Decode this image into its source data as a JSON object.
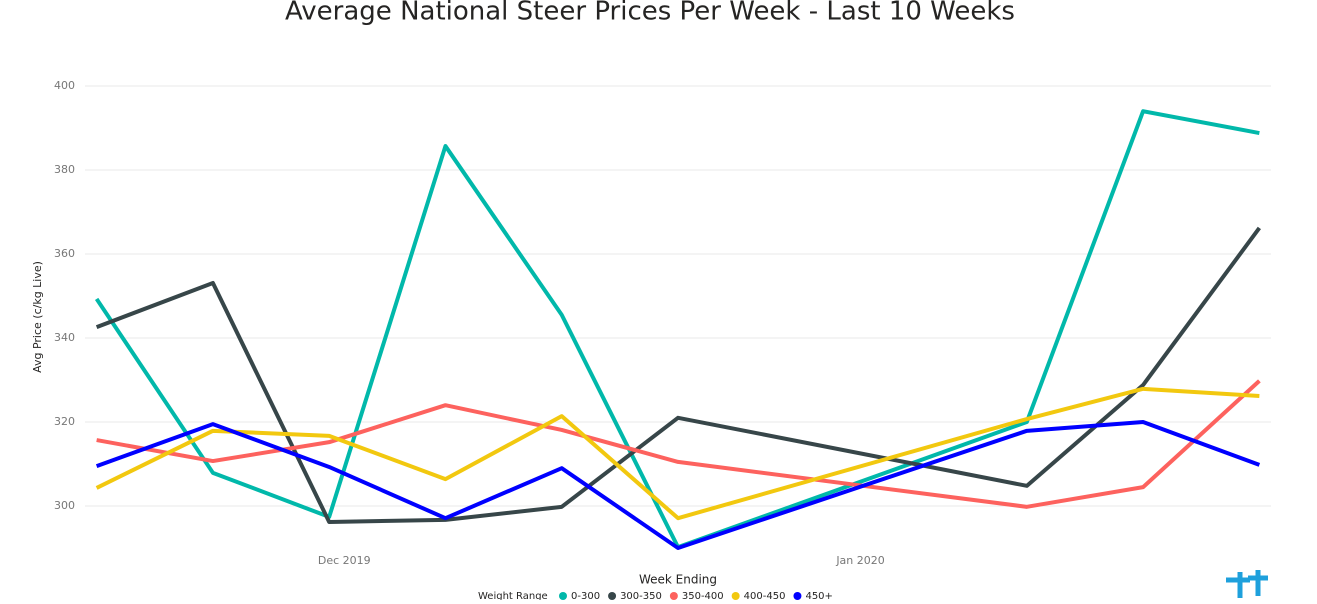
{
  "chart_data": {
    "type": "line",
    "title": "Average National Steer Prices Per Week - Last 10 Weeks",
    "x_label": "Week Ending",
    "y_label": "Avg Price (c/kg Live)",
    "legend_title": "Weight Range",
    "legend": "bottom",
    "grid": true,
    "x": [
      0,
      1,
      2,
      3,
      4,
      5,
      8,
      9,
      10
    ],
    "xlim": [
      -0.1,
      10.1
    ],
    "xticks": [
      {
        "value": 2.13,
        "label": "Dec 2019"
      },
      {
        "value": 6.57,
        "label": "Jan 2020"
      }
    ],
    "ylim": [
      290,
      400
    ],
    "yticks": [
      300,
      320,
      340,
      360,
      380,
      400
    ],
    "series": [
      {
        "name": "0-300",
        "color": "#01b8aa",
        "values": [
          349.3,
          307.9,
          297.4,
          385.7,
          345.5,
          290.2,
          320,
          394,
          388.8
        ]
      },
      {
        "name": "300-350",
        "color": "#374649",
        "values": [
          342.6,
          353.1,
          296.2,
          296.7,
          299.8,
          321,
          304.8,
          328.8,
          366.2
        ]
      },
      {
        "name": "350-400",
        "color": "#fd625e",
        "values": [
          315.7,
          310.7,
          315.2,
          324,
          318.1,
          310.5,
          299.8,
          304.5,
          329.8
        ]
      },
      {
        "name": "400-450",
        "color": "#f2c80f",
        "values": [
          304.3,
          317.9,
          316.7,
          306.4,
          321.4,
          297.1,
          320.7,
          327.9,
          326.2
        ]
      },
      {
        "name": "450+",
        "color": "#0000ff",
        "values": [
          309.5,
          319.5,
          309.3,
          297.1,
          309,
          290,
          317.9,
          320,
          309.8
        ]
      }
    ]
  }
}
